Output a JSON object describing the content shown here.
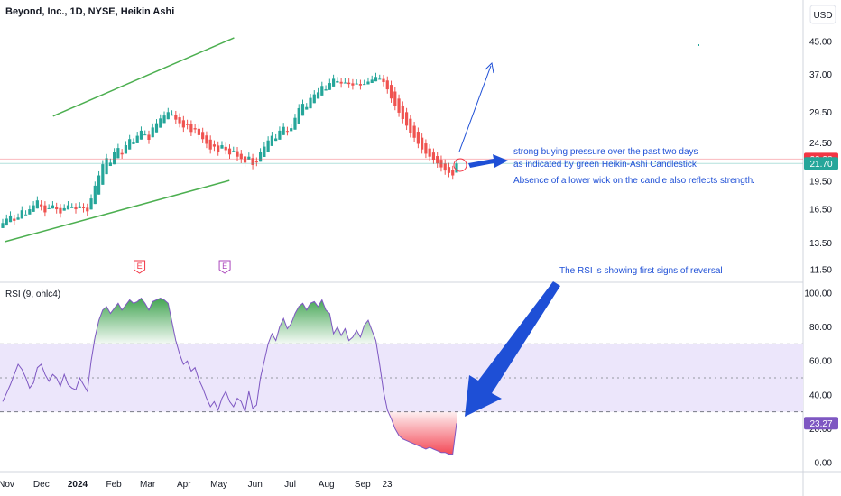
{
  "header": {
    "title": "Beyond, Inc., 1D, NYSE, Heikin Ashi",
    "currency": "USD"
  },
  "colors": {
    "up": "#26a69a",
    "down": "#ef5350",
    "channel": "#4caf50",
    "annotation": "#1e4fd6",
    "rsi_line": "#7e57c2",
    "rsi_band": "#ece6fb",
    "overbought_fill": "#2e9b40",
    "oversold_fill": "#f23645"
  },
  "chart_data": [
    {
      "type": "candlestick",
      "title": "Beyond, Inc., 1D, NYSE, Heikin Ashi",
      "scale": "log",
      "ylim": [
        11.0,
        50.0
      ],
      "y_ticks": [
        "45.00",
        "37.00",
        "29.50",
        "24.50",
        "19.50",
        "16.50",
        "13.50",
        "11.50"
      ],
      "x_ticks": [
        "Nov",
        "Dec",
        "2024",
        "Feb",
        "Mar",
        "Apr",
        "May",
        "Jun",
        "Jul",
        "Aug",
        "Sep",
        "23"
      ],
      "x_tick_days": [
        0,
        30,
        61,
        92,
        121,
        152,
        182,
        213,
        243,
        274,
        305,
        326
      ],
      "start_date": "2023-11-01",
      "price_labels": [
        {
          "text": "22.28",
          "value": 22.28,
          "color": "#f23645"
        },
        {
          "text": "21.70",
          "value": 21.7,
          "color": "#26a69a"
        }
      ],
      "channel_lines": [
        {
          "from": [
            "2023-10-31",
            13.6
          ],
          "to": [
            "2024-05-10",
            19.6
          ]
        },
        {
          "from": [
            "2023-12-11",
            28.8
          ],
          "to": [
            "2024-05-14",
            46.0
          ]
        }
      ],
      "earnings_markers": [
        {
          "label": "E",
          "date": "2024-02-23"
        },
        {
          "label": "E",
          "date": "2024-05-06"
        }
      ],
      "candles_close": [
        15.2,
        15.6,
        15.9,
        15.4,
        15.7,
        16.4,
        16.0,
        16.5,
        16.9,
        17.4,
        16.8,
        16.2,
        16.6,
        16.9,
        16.5,
        16.1,
        16.6,
        16.9,
        16.7,
        16.5,
        16.8,
        16.6,
        16.3,
        17.6,
        19.0,
        20.2,
        21.6,
        22.4,
        21.8,
        23.2,
        23.8,
        22.9,
        24.2,
        25.1,
        24.6,
        25.6,
        26.4,
        25.8,
        25.0,
        26.9,
        27.6,
        28.4,
        28.9,
        29.5,
        29.1,
        28.2,
        27.6,
        26.9,
        27.3,
        26.2,
        26.6,
        25.7,
        25.1,
        24.4,
        23.6,
        24.0,
        23.3,
        24.2,
        23.5,
        22.9,
        23.4,
        22.6,
        22.3,
        21.8,
        22.6,
        21.5,
        21.9,
        23.2,
        24.0,
        24.9,
        25.6,
        25.2,
        26.4,
        27.0,
        26.3,
        26.8,
        28.5,
        30.2,
        31.0,
        30.4,
        32.1,
        32.8,
        33.2,
        34.5,
        33.8,
        35.1,
        36.0,
        35.5,
        35.0,
        35.2,
        34.9,
        34.6,
        35.0,
        34.6,
        34.9,
        35.4,
        35.8,
        36.4,
        36.0,
        35.3,
        33.8,
        32.0,
        30.6,
        29.4,
        28.3,
        27.2,
        26.0,
        25.3,
        24.4,
        23.6,
        23.0,
        22.6,
        22.2,
        21.7,
        21.2,
        20.8,
        20.5,
        20.2,
        21.7
      ],
      "annotations": [
        "strong buying pressure over the past two days",
        "as indicated by green Heikin-Ashi Candlestick",
        "Absence of a lower wick on the candle also reflects strength."
      ]
    },
    {
      "type": "line",
      "title": "RSI (9, ohlc4)",
      "ylim": [
        0,
        100
      ],
      "y_ticks": [
        "100.00",
        "80.00",
        "60.00",
        "40.00",
        "20.00",
        "0.00"
      ],
      "bands": {
        "upper": 70,
        "middle": 50,
        "lower": 30
      },
      "current_value": "23.27",
      "series": [
        {
          "values": [
            36,
            41,
            46,
            52,
            58,
            55,
            50,
            44,
            47,
            56,
            58,
            52,
            48,
            52,
            50,
            45,
            52,
            46,
            44,
            43,
            50,
            46,
            42,
            60,
            74,
            84,
            90,
            92,
            88,
            91,
            94,
            90,
            93,
            96,
            94,
            95,
            97,
            94,
            90,
            95,
            96,
            97,
            96,
            94,
            83,
            72,
            64,
            58,
            60,
            54,
            56,
            49,
            44,
            38,
            33,
            36,
            31,
            38,
            42,
            36,
            33,
            38,
            36,
            30,
            42,
            32,
            34,
            50,
            60,
            70,
            76,
            72,
            80,
            85,
            79,
            82,
            88,
            92,
            94,
            90,
            94,
            95,
            92,
            96,
            90,
            88,
            76,
            80,
            75,
            79,
            72,
            74,
            78,
            74,
            81,
            84,
            78,
            72,
            58,
            42,
            31,
            26,
            20,
            16,
            14,
            13,
            12,
            11,
            10,
            9,
            8,
            9,
            8,
            7,
            6,
            6,
            5,
            5,
            23.27
          ]
        }
      ],
      "annotations": [
        "The RSI is showing first signs of reversal"
      ]
    }
  ]
}
